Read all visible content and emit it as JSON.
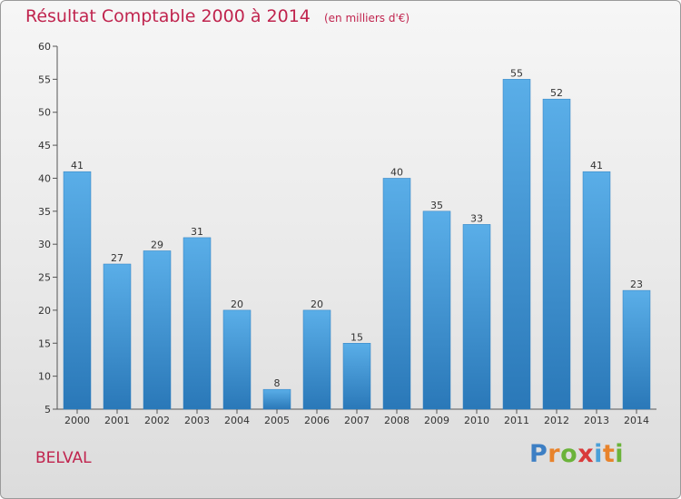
{
  "chart_data": {
    "type": "bar",
    "title": "Résultat Comptable 2000 à 2014",
    "unit_note": "(en milliers d'€)",
    "categories": [
      "2000",
      "2001",
      "2002",
      "2003",
      "2004",
      "2005",
      "2006",
      "2007",
      "2008",
      "2009",
      "2010",
      "2011",
      "2012",
      "2013",
      "2014"
    ],
    "values": [
      41,
      27,
      29,
      31,
      20,
      8,
      20,
      15,
      40,
      35,
      33,
      55,
      52,
      41,
      23
    ],
    "ylim": [
      5,
      60
    ],
    "yticks": [
      5,
      10,
      15,
      20,
      25,
      30,
      35,
      40,
      45,
      50,
      55,
      60
    ],
    "xlabel": "",
    "ylabel": "",
    "grid": false,
    "bar_color": "#3a93d6"
  },
  "footer": {
    "commune": "BELVAL",
    "logo_letters": [
      "P",
      "r",
      "o",
      "x",
      "i",
      "t",
      "i"
    ],
    "logo_colors": [
      "#3d7fc4",
      "#e8832b",
      "#6bb33a",
      "#d93a3a",
      "#4aa0d8",
      "#e8832b",
      "#6bb33a"
    ]
  },
  "colors": {
    "title": "#c0244e",
    "axis": "#555555"
  }
}
